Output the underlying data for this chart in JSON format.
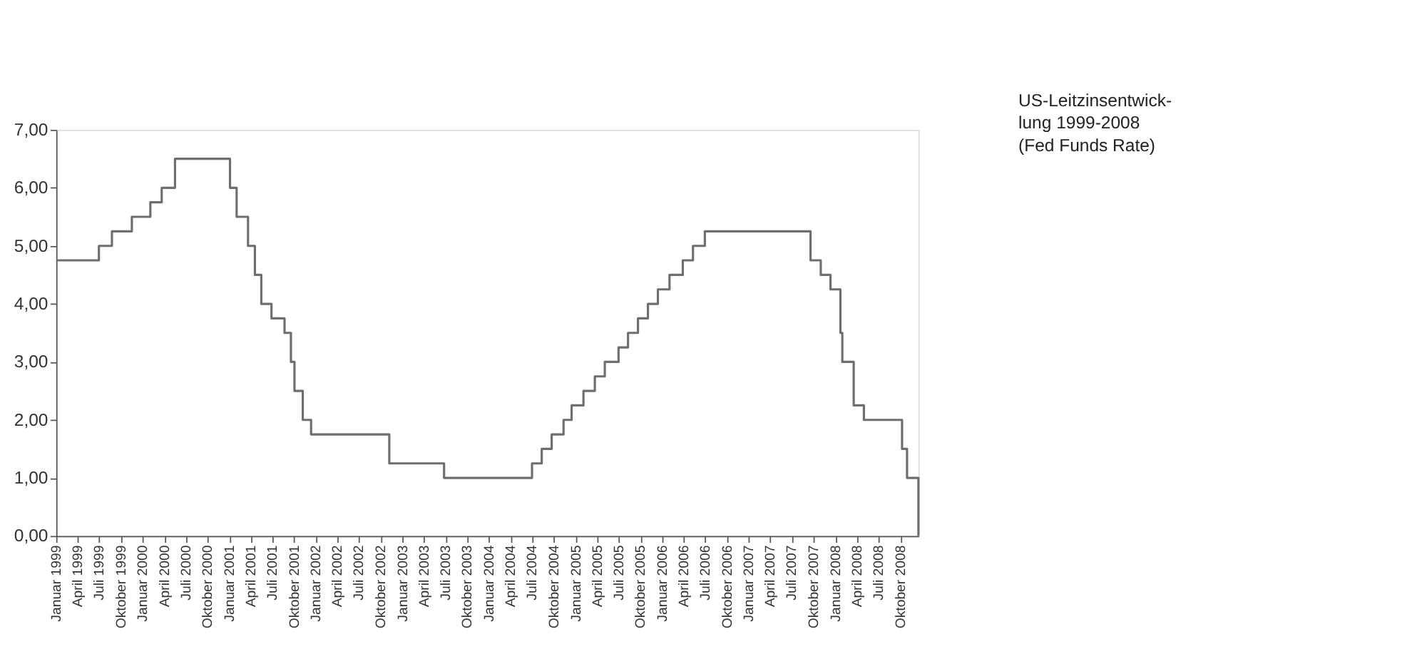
{
  "chart_data": {
    "type": "step",
    "title": "US-Leitzinsentwick-\nlung 1999-2008\n(Fed Funds Rate)",
    "x": [
      "1999-01-01",
      "1999-06-30",
      "1999-08-24",
      "1999-11-16",
      "2000-02-02",
      "2000-03-21",
      "2000-05-16",
      "2001-01-03",
      "2001-01-31",
      "2001-03-20",
      "2001-04-18",
      "2001-05-15",
      "2001-06-27",
      "2001-08-21",
      "2001-09-17",
      "2001-10-02",
      "2001-11-06",
      "2001-12-11",
      "2002-11-06",
      "2003-06-25",
      "2004-06-30",
      "2004-08-10",
      "2004-09-21",
      "2004-11-10",
      "2004-12-14",
      "2005-02-02",
      "2005-03-22",
      "2005-05-03",
      "2005-06-30",
      "2005-08-09",
      "2005-09-20",
      "2005-11-01",
      "2005-12-13",
      "2006-01-31",
      "2006-03-28",
      "2006-05-10",
      "2006-06-29",
      "2007-09-18",
      "2007-10-31",
      "2007-12-11",
      "2008-01-22",
      "2008-01-30",
      "2008-03-18",
      "2008-04-30",
      "2008-10-08",
      "2008-10-29",
      "2008-12-16"
    ],
    "series": [
      {
        "color": "#6e6e6e",
        "values": [
          4.75,
          5.0,
          5.25,
          5.5,
          5.75,
          6.0,
          6.5,
          6.0,
          5.5,
          5.0,
          4.5,
          4.0,
          3.75,
          3.5,
          3.0,
          2.5,
          2.0,
          1.75,
          1.25,
          1.0,
          1.25,
          1.5,
          1.75,
          2.0,
          2.25,
          2.5,
          2.75,
          3.0,
          3.25,
          3.5,
          3.75,
          4.0,
          4.25,
          4.5,
          4.75,
          5.0,
          5.25,
          4.75,
          4.5,
          4.25,
          3.5,
          3.0,
          2.25,
          2.0,
          1.5,
          1.0,
          0.0
        ]
      }
    ],
    "xlim": [
      "1999-01-01",
      "2008-12-16"
    ],
    "xticks": [
      {
        "value": "1999-01-01",
        "label": "Januar 1999"
      },
      {
        "value": "1999-04-01",
        "label": "April 1999"
      },
      {
        "value": "1999-07-01",
        "label": "Juli 1999"
      },
      {
        "value": "1999-10-01",
        "label": "Oktober 1999"
      },
      {
        "value": "2000-01-01",
        "label": "Januar 2000"
      },
      {
        "value": "2000-04-01",
        "label": "April 2000"
      },
      {
        "value": "2000-07-01",
        "label": "Juli 2000"
      },
      {
        "value": "2000-10-01",
        "label": "Oktober 2000"
      },
      {
        "value": "2001-01-01",
        "label": "Januar 2001"
      },
      {
        "value": "2001-04-01",
        "label": "April 2001"
      },
      {
        "value": "2001-07-01",
        "label": "Juli 2001"
      },
      {
        "value": "2001-10-01",
        "label": "Oktober 2001"
      },
      {
        "value": "2002-01-01",
        "label": "Januar 2002"
      },
      {
        "value": "2002-04-01",
        "label": "April 2002"
      },
      {
        "value": "2002-07-01",
        "label": "Juli 2002"
      },
      {
        "value": "2002-10-01",
        "label": "Oktober 2002"
      },
      {
        "value": "2003-01-01",
        "label": "Januar 2003"
      },
      {
        "value": "2003-04-01",
        "label": "April 2003"
      },
      {
        "value": "2003-07-01",
        "label": "Juli 2003"
      },
      {
        "value": "2003-10-01",
        "label": "Oktober 2003"
      },
      {
        "value": "2004-01-01",
        "label": "Januar 2004"
      },
      {
        "value": "2004-04-01",
        "label": "April 2004"
      },
      {
        "value": "2004-07-01",
        "label": "Juli 2004"
      },
      {
        "value": "2004-10-01",
        "label": "Oktober 2004"
      },
      {
        "value": "2005-01-01",
        "label": "Januar 2005"
      },
      {
        "value": "2005-04-01",
        "label": "April 2005"
      },
      {
        "value": "2005-07-01",
        "label": "Juli 2005"
      },
      {
        "value": "2005-10-01",
        "label": "Oktober 2005"
      },
      {
        "value": "2006-01-01",
        "label": "Januar 2006"
      },
      {
        "value": "2006-04-01",
        "label": "April 2006"
      },
      {
        "value": "2006-07-01",
        "label": "Juli 2006"
      },
      {
        "value": "2006-10-01",
        "label": "Oktober 2006"
      },
      {
        "value": "2007-01-01",
        "label": "Januar 2007"
      },
      {
        "value": "2007-04-01",
        "label": "April 2007"
      },
      {
        "value": "2007-07-01",
        "label": "Juli 2007"
      },
      {
        "value": "2007-10-01",
        "label": "Oktober 2007"
      },
      {
        "value": "2008-01-01",
        "label": "Januar 2008"
      },
      {
        "value": "2008-04-01",
        "label": "April 2008"
      },
      {
        "value": "2008-07-01",
        "label": "Juli 2008"
      },
      {
        "value": "2008-10-01",
        "label": "Oktober 2008"
      }
    ],
    "ylim": [
      0,
      7
    ],
    "yticks": [
      {
        "value": 0,
        "label": "0,00"
      },
      {
        "value": 1,
        "label": "1,00"
      },
      {
        "value": 2,
        "label": "2,00"
      },
      {
        "value": 3,
        "label": "3,00"
      },
      {
        "value": 4,
        "label": "4,00"
      },
      {
        "value": 5,
        "label": "5,00"
      },
      {
        "value": 6,
        "label": "6,00"
      },
      {
        "value": 7,
        "label": "7,00"
      }
    ],
    "grid": false
  }
}
